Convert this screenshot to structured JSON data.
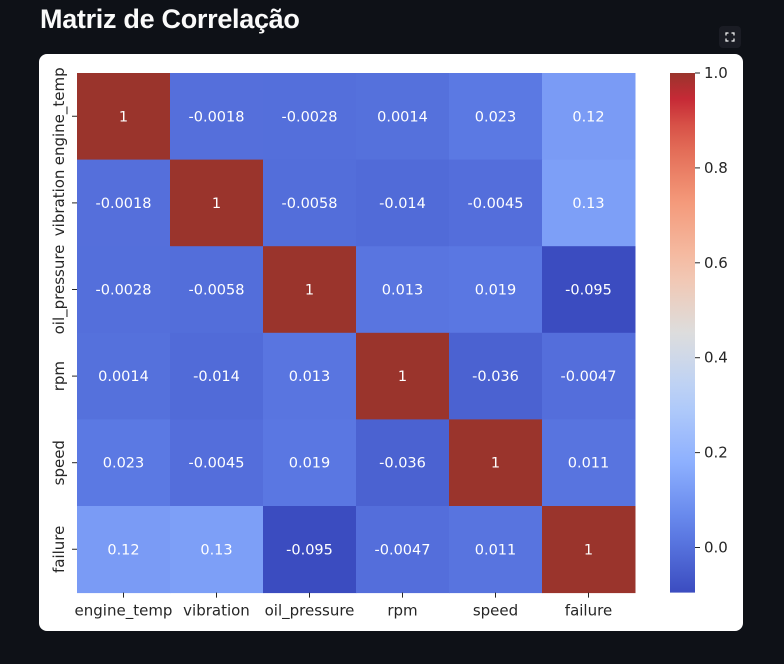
{
  "page": {
    "title": "Matriz de Correlação"
  },
  "chart_data": {
    "type": "heatmap",
    "title": "",
    "xlabel": "",
    "ylabel": "",
    "x_categories": [
      "engine_temp",
      "vibration",
      "oil_pressure",
      "rpm",
      "speed",
      "failure"
    ],
    "y_categories": [
      "engine_temp",
      "vibration",
      "oil_pressure",
      "rpm",
      "speed",
      "failure"
    ],
    "values": [
      [
        1,
        -0.0018,
        -0.0028,
        0.0014,
        0.023,
        0.12
      ],
      [
        -0.0018,
        1,
        -0.0058,
        -0.014,
        -0.0045,
        0.13
      ],
      [
        -0.0028,
        -0.0058,
        1,
        0.013,
        0.019,
        -0.095
      ],
      [
        0.0014,
        -0.014,
        0.013,
        1,
        -0.036,
        -0.0047
      ],
      [
        0.023,
        -0.0045,
        0.019,
        -0.036,
        1,
        0.011
      ],
      [
        0.12,
        0.13,
        -0.095,
        -0.0047,
        0.011,
        1
      ]
    ],
    "value_labels": [
      [
        "1",
        "-0.0018",
        "-0.0028",
        "0.0014",
        "0.023",
        "0.12"
      ],
      [
        "-0.0018",
        "1",
        "-0.0058",
        "-0.014",
        "-0.0045",
        "0.13"
      ],
      [
        "-0.0028",
        "-0.0058",
        "1",
        "0.013",
        "0.019",
        "-0.095"
      ],
      [
        "0.0014",
        "-0.014",
        "0.013",
        "1",
        "-0.036",
        "-0.0047"
      ],
      [
        "0.023",
        "-0.0045",
        "0.019",
        "-0.036",
        "1",
        "0.011"
      ],
      [
        "0.12",
        "0.13",
        "-0.095",
        "-0.0047",
        "0.011",
        "1"
      ]
    ],
    "colorbar": {
      "colormap": "coolwarm",
      "vmin": -0.095,
      "vmax": 1.0,
      "ticks": [
        0.0,
        0.2,
        0.4,
        0.6,
        0.8,
        1.0
      ],
      "tick_labels": [
        "0.0",
        "0.2",
        "0.4",
        "0.6",
        "0.8",
        "1.0"
      ]
    }
  }
}
